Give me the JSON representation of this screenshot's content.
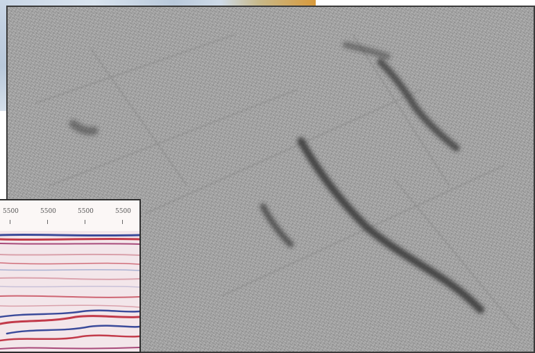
{
  "inset": {
    "tick_labels": [
      "5500",
      "5500",
      "5500",
      "5500"
    ]
  },
  "colors": {
    "panel_gray": "#9a9a9a",
    "panel_border": "#3a3a3a",
    "reflector_red": "#c23a4a",
    "reflector_blue": "#3a4a9a",
    "strip_orange": "#d89a3c"
  }
}
